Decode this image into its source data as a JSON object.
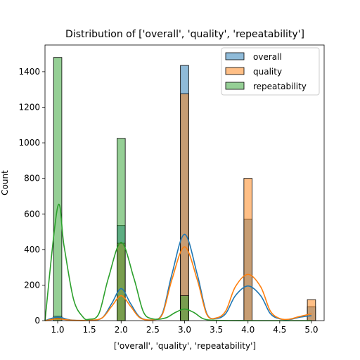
{
  "chart_data": {
    "type": "histogram",
    "title": "Distribution of ['overall', 'quality', 'repeatability']",
    "xlabel": "['overall', 'quality', 'repeatability']",
    "ylabel": "Count",
    "xlim": [
      0.8,
      5.2
    ],
    "ylim": [
      0,
      1550
    ],
    "xticks": [
      1.0,
      1.5,
      2.0,
      2.5,
      3.0,
      3.5,
      4.0,
      4.5,
      5.0
    ],
    "xtick_labels": [
      "1.0",
      "1.5",
      "2.0",
      "2.5",
      "3.0",
      "3.5",
      "4.0",
      "4.5",
      "5.0"
    ],
    "yticks": [
      0,
      200,
      400,
      600,
      800,
      1000,
      1200,
      1400
    ],
    "ytick_labels": [
      "0",
      "200",
      "400",
      "600",
      "800",
      "1000",
      "1200",
      "1400"
    ],
    "legend_position": "top-right",
    "bin_centers": [
      1.0,
      2.0,
      3.0,
      4.0,
      5.0
    ],
    "bin_width": 0.13,
    "series": [
      {
        "name": "overall",
        "color": "#1f77b4",
        "values": [
          25,
          535,
          1435,
          570,
          78
        ],
        "kde": [
          [
            0.8,
            0
          ],
          [
            1.0,
            20
          ],
          [
            1.2,
            4
          ],
          [
            1.5,
            2
          ],
          [
            1.7,
            15
          ],
          [
            1.85,
            95
          ],
          [
            2.0,
            180
          ],
          [
            2.15,
            95
          ],
          [
            2.3,
            18
          ],
          [
            2.5,
            5
          ],
          [
            2.65,
            40
          ],
          [
            2.8,
            260
          ],
          [
            3.0,
            485
          ],
          [
            3.2,
            260
          ],
          [
            3.35,
            40
          ],
          [
            3.5,
            12
          ],
          [
            3.65,
            40
          ],
          [
            3.8,
            140
          ],
          [
            4.0,
            195
          ],
          [
            4.2,
            140
          ],
          [
            4.35,
            40
          ],
          [
            4.5,
            10
          ],
          [
            4.65,
            6
          ],
          [
            4.8,
            18
          ],
          [
            5.0,
            28
          ]
        ]
      },
      {
        "name": "quality",
        "color": "#ff7f0e",
        "values": [
          15,
          435,
          1275,
          800,
          118
        ],
        "kde": [
          [
            0.8,
            0
          ],
          [
            1.0,
            10
          ],
          [
            1.2,
            3
          ],
          [
            1.5,
            2
          ],
          [
            1.7,
            15
          ],
          [
            1.85,
            80
          ],
          [
            2.0,
            140
          ],
          [
            2.15,
            80
          ],
          [
            2.3,
            15
          ],
          [
            2.5,
            5
          ],
          [
            2.65,
            35
          ],
          [
            2.8,
            230
          ],
          [
            3.0,
            415
          ],
          [
            3.2,
            230
          ],
          [
            3.35,
            35
          ],
          [
            3.5,
            15
          ],
          [
            3.65,
            55
          ],
          [
            3.8,
            190
          ],
          [
            4.0,
            260
          ],
          [
            4.2,
            190
          ],
          [
            4.35,
            55
          ],
          [
            4.5,
            12
          ],
          [
            4.65,
            8
          ],
          [
            4.8,
            22
          ],
          [
            5.0,
            38
          ]
        ]
      },
      {
        "name": "repeatability",
        "color": "#2ca02c",
        "values": [
          1480,
          1025,
          140,
          0,
          0
        ],
        "kde": [
          [
            0.8,
            0
          ],
          [
            1.0,
            640
          ],
          [
            1.1,
            420
          ],
          [
            1.25,
            120
          ],
          [
            1.4,
            20
          ],
          [
            1.5,
            8
          ],
          [
            1.65,
            40
          ],
          [
            1.8,
            240
          ],
          [
            2.0,
            440
          ],
          [
            2.2,
            240
          ],
          [
            2.35,
            50
          ],
          [
            2.5,
            10
          ],
          [
            2.7,
            15
          ],
          [
            2.85,
            45
          ],
          [
            3.0,
            65
          ],
          [
            3.15,
            45
          ],
          [
            3.3,
            10
          ],
          [
            3.5,
            2
          ],
          [
            4.0,
            0
          ],
          [
            4.5,
            0
          ],
          [
            5.0,
            0
          ]
        ]
      }
    ]
  }
}
